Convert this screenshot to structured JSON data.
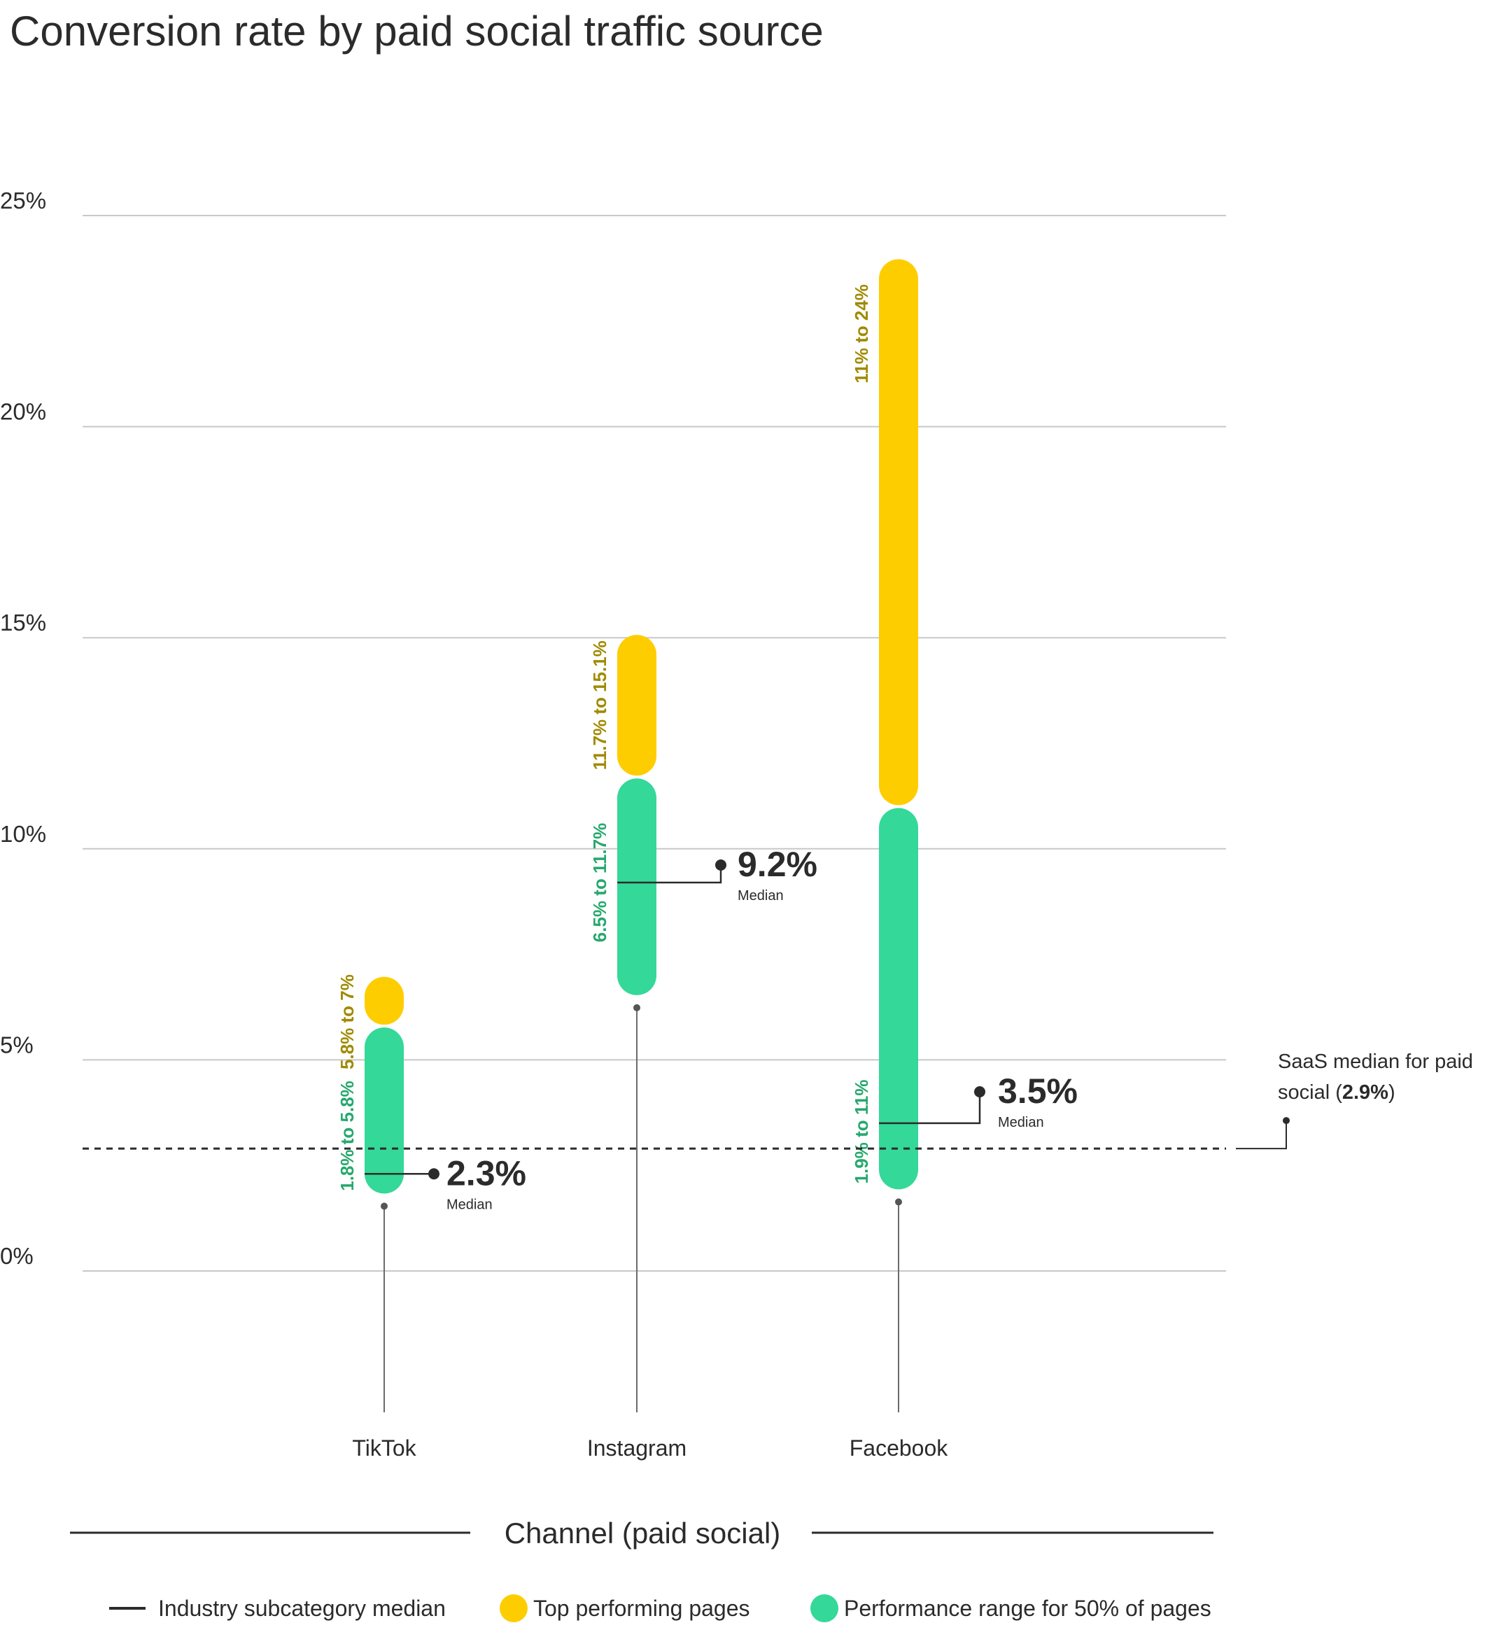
{
  "chart_data": {
    "type": "range-bar",
    "title": "Conversion rate by paid social traffic source",
    "xlabel": "Channel (paid social)",
    "ylabel": "",
    "ylim": [
      0,
      25
    ],
    "y_ticks": [
      {
        "value": 0,
        "label": "0%"
      },
      {
        "value": 5,
        "label": "5%"
      },
      {
        "value": 10,
        "label": "10%"
      },
      {
        "value": 15,
        "label": "15%"
      },
      {
        "value": 20,
        "label": "20%"
      },
      {
        "value": 25,
        "label": "25%"
      }
    ],
    "grid": true,
    "categories": [
      "TikTok",
      "Instagram",
      "Facebook"
    ],
    "series": [
      {
        "name": "Performance range for 50% of pages",
        "color": "#34d899",
        "label_color": "#27a86e",
        "ranges": [
          [
            1.8,
            5.8
          ],
          [
            6.5,
            11.7
          ],
          [
            1.9,
            11
          ]
        ],
        "labels": [
          "1.8% to 5.8%",
          "6.5% to 11.7%",
          "1.9% to 11%"
        ]
      },
      {
        "name": "Top performing pages",
        "color": "#fecd00",
        "label_color": "#a08a00",
        "ranges": [
          [
            5.8,
            7
          ],
          [
            11.7,
            15.1
          ],
          [
            11,
            24
          ]
        ],
        "labels": [
          "5.8% to 7%",
          "11.7% to 15.1%",
          "11% to 24%"
        ]
      }
    ],
    "medians": [
      {
        "category": "TikTok",
        "value": 2.3,
        "label": "2.3%",
        "caption": "Median"
      },
      {
        "category": "Instagram",
        "value": 9.2,
        "label": "9.2%",
        "caption": "Median"
      },
      {
        "category": "Facebook",
        "value": 3.5,
        "label": "3.5%",
        "caption": "Median"
      }
    ],
    "reference_line": {
      "value": 2.9,
      "label_prefix": "SaaS median for paid",
      "label_suffix_before": "social (",
      "label_bold": "2.9%",
      "label_suffix_after": ")"
    },
    "legend": {
      "position": "bottom",
      "items": [
        {
          "name": "Industry subcategory median",
          "marker": "line",
          "color": "#2b2b2b"
        },
        {
          "name": "Top performing pages",
          "marker": "dot",
          "color": "#fecd00"
        },
        {
          "name": "Performance range for 50% of pages",
          "marker": "dot",
          "color": "#34d899"
        }
      ]
    }
  }
}
